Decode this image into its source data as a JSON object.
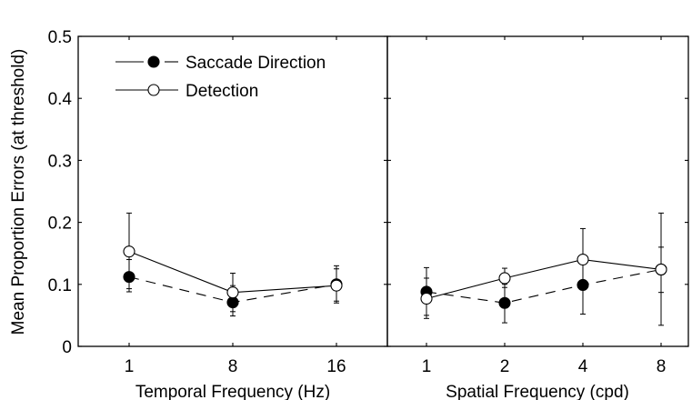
{
  "chart_data": [
    {
      "type": "line",
      "xlabel": "Temporal Frequency (Hz)",
      "ylabel": "Mean Proportion Errors (at threshold)",
      "categories": [
        "1",
        "8",
        "16"
      ],
      "ylim": [
        0,
        0.5
      ],
      "yticks": [
        "0",
        "0.1",
        "0.2",
        "0.3",
        "0.4",
        "0.5"
      ],
      "grid": false,
      "legend_position": "top-left",
      "series": [
        {
          "name": "Saccade Direction",
          "style": "dashed",
          "marker": "filled-circle",
          "values": [
            0.112,
            0.071,
            0.1
          ],
          "err_low": [
            0.088,
            0.049,
            0.073
          ],
          "err_high": [
            0.14,
            0.098,
            0.13
          ]
        },
        {
          "name": "Detection",
          "style": "solid",
          "marker": "open-circle",
          "values": [
            0.153,
            0.087,
            0.098
          ],
          "err_low": [
            0.093,
            0.056,
            0.07
          ],
          "err_high": [
            0.215,
            0.118,
            0.125
          ]
        }
      ]
    },
    {
      "type": "line",
      "xlabel": "Spatial Frequency (cpd)",
      "categories": [
        "1",
        "2",
        "4",
        "8"
      ],
      "ylim": [
        0,
        0.5
      ],
      "grid": false,
      "series": [
        {
          "name": "Saccade Direction",
          "style": "dashed",
          "marker": "filled-circle",
          "values": [
            0.088,
            0.07,
            0.099,
            0.124
          ],
          "err_low": [
            0.05,
            0.038,
            0.052,
            0.087
          ],
          "err_high": [
            0.127,
            0.1,
            0.145,
            0.16
          ]
        },
        {
          "name": "Detection",
          "style": "solid",
          "marker": "open-circle",
          "values": [
            0.077,
            0.11,
            0.14,
            0.124
          ],
          "err_low": [
            0.045,
            0.095,
            0.092,
            0.034
          ],
          "err_high": [
            0.11,
            0.126,
            0.19,
            0.215
          ]
        }
      ]
    }
  ],
  "colors": {
    "line": "#000000",
    "background": "#ffffff"
  }
}
